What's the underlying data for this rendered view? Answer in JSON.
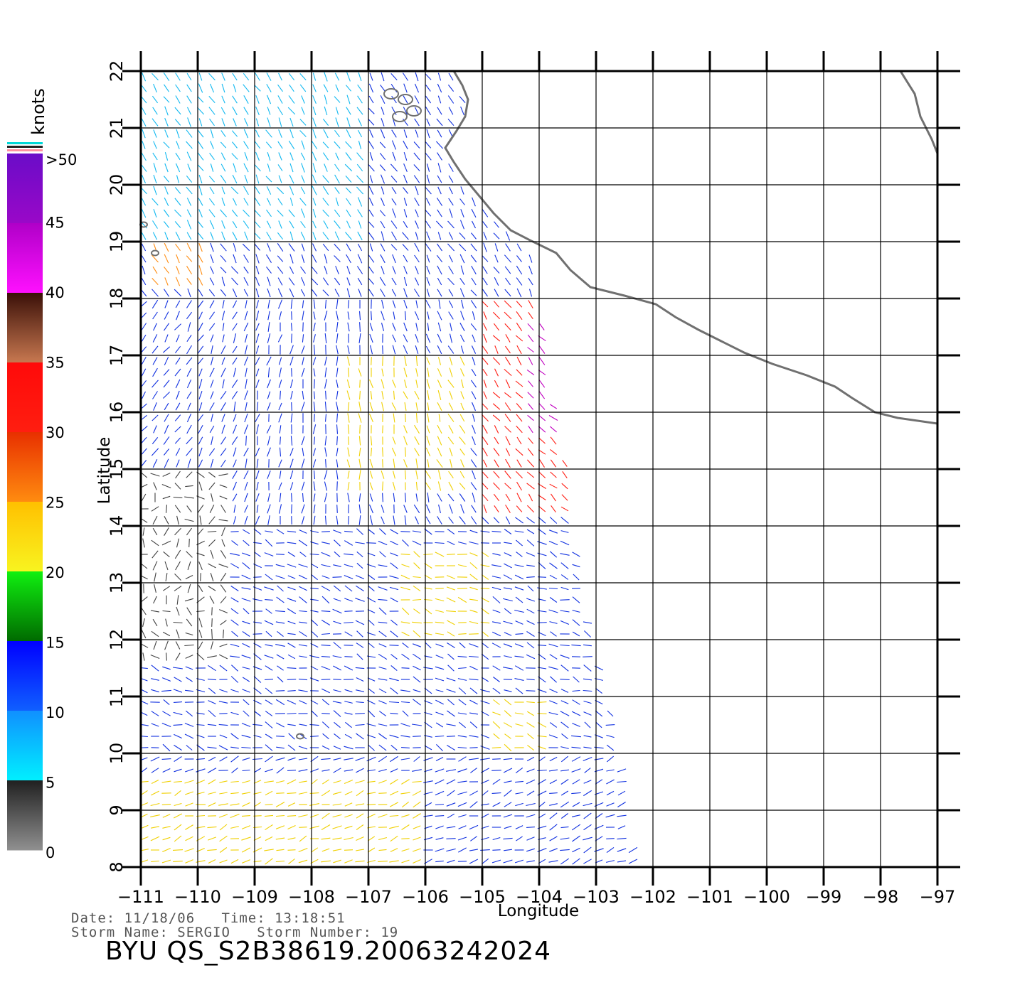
{
  "legend": {
    "unit": "knots",
    "labels": [
      ">50",
      "45",
      "40",
      "35",
      "30",
      "25",
      "20",
      "15",
      "10",
      "5",
      "0"
    ],
    "colors": {
      "gt50_top": "#6a0cc8",
      "gt50_bottom": "#9a08c8",
      "c40_45_top": "#b000c8",
      "c40_45_bottom": "#ff10ff",
      "c35_40_top": "#3a1008",
      "c35_40_bottom": "#c87850",
      "c30_35_top": "#ff0a0a",
      "c30_35_bottom": "#ff1e10",
      "c25_30_top": "#e83000",
      "c25_30_bottom": "#ff8c10",
      "c20_25_top": "#ffc000",
      "c20_25_bottom": "#f8f420",
      "c15_20_top": "#10f010",
      "c15_20_bottom": "#006a00",
      "c10_15_top": "#0000ff",
      "c10_15_bottom": "#1060ff",
      "c5_10_top": "#1090ff",
      "c5_10_bottom": "#00f0ff",
      "c0_5_top": "#202020",
      "c0_5_bottom": "#909090"
    }
  },
  "axes": {
    "xlabel": "Longitude",
    "ylabel": "Latitude",
    "lon_ticks": [
      "−111",
      "−110",
      "−109",
      "−108",
      "−107",
      "−106",
      "−105",
      "−104",
      "−103",
      "−102",
      "−101",
      "−100",
      "−99",
      "−98",
      "−97"
    ],
    "lat_ticks": [
      "22",
      "21",
      "20",
      "19",
      "18",
      "17",
      "16",
      "15",
      "14",
      "13",
      "12",
      "11",
      "10",
      "9",
      "8"
    ],
    "lon_range": [
      -111,
      -97
    ],
    "lat_range": [
      8,
      22
    ]
  },
  "info": {
    "date_line": "Date: 11/18/06   Time: 13:18:51",
    "storm_line": "Storm Name: SERGIO   Storm Number: 19",
    "title": "BYU QS_S2B38619.20063242024"
  },
  "coastline": [
    [
      -105.5,
      22.0
    ],
    [
      -105.35,
      21.75
    ],
    [
      -105.25,
      21.5
    ],
    [
      -105.3,
      21.2
    ],
    [
      -105.45,
      20.95
    ],
    [
      -105.65,
      20.65
    ],
    [
      -105.5,
      20.4
    ],
    [
      -105.3,
      20.1
    ],
    [
      -105.05,
      19.8
    ],
    [
      -104.8,
      19.5
    ],
    [
      -104.5,
      19.2
    ],
    [
      -104.15,
      19.02
    ],
    [
      -103.7,
      18.8
    ],
    [
      -103.45,
      18.5
    ],
    [
      -103.1,
      18.2
    ],
    [
      -102.5,
      18.05
    ],
    [
      -101.95,
      17.9
    ],
    [
      -101.6,
      17.67
    ],
    [
      -101.2,
      17.45
    ],
    [
      -100.8,
      17.25
    ],
    [
      -100.4,
      17.05
    ],
    [
      -99.9,
      16.85
    ],
    [
      -99.3,
      16.65
    ],
    [
      -98.8,
      16.45
    ],
    [
      -98.5,
      16.25
    ],
    [
      -98.1,
      16.0
    ],
    [
      -97.7,
      15.9
    ],
    [
      -97.0,
      15.8
    ]
  ],
  "coast_ne": [
    [
      -97.65,
      22.0
    ],
    [
      -97.4,
      21.6
    ],
    [
      -97.3,
      21.2
    ],
    [
      -97.1,
      20.8
    ],
    [
      -97.0,
      20.55
    ]
  ],
  "islands": [
    [
      -106.6,
      21.6
    ],
    [
      -106.35,
      21.5
    ],
    [
      -106.2,
      21.3
    ],
    [
      -106.45,
      21.2
    ],
    [
      -110.95,
      19.3
    ],
    [
      -110.75,
      18.8
    ],
    [
      -108.2,
      10.3
    ]
  ],
  "wind_field": {
    "swath_east_edge": [
      [
        -102.3,
        8.0
      ],
      [
        -102.5,
        9.5
      ],
      [
        -102.8,
        11.0
      ],
      [
        -103.2,
        12.5
      ],
      [
        -103.4,
        14.0
      ],
      [
        -103.5,
        15.0
      ],
      [
        -103.8,
        16.5
      ],
      [
        -104.0,
        18.0
      ],
      [
        -104.2,
        19.0
      ],
      [
        -105.2,
        20.0
      ]
    ],
    "zones": [
      {
        "lon": [
          -105.0,
          -103.4
        ],
        "lat": [
          14.2,
          18.0
        ],
        "speed": 30
      },
      {
        "lon": [
          -104.2,
          -103.4
        ],
        "lat": [
          15.5,
          17.5
        ],
        "speed": 42
      },
      {
        "lon": [
          -107.5,
          -105.3
        ],
        "lat": [
          14.5,
          17.0
        ],
        "speed": 22
      },
      {
        "lon": [
          -106.5,
          -104.8
        ],
        "lat": [
          12.0,
          13.5
        ],
        "speed": 22
      },
      {
        "lon": [
          -104.8,
          -103.9
        ],
        "lat": [
          10.0,
          11.0
        ],
        "speed": 22
      },
      {
        "lon": [
          -111.0,
          -106.0
        ],
        "lat": [
          8.0,
          9.5
        ],
        "speed": 20
      },
      {
        "lon": [
          -110.9,
          -109.8
        ],
        "lat": [
          18.2,
          18.9
        ],
        "speed": 28
      },
      {
        "lon": [
          -111.0,
          -109.5
        ],
        "lat": [
          11.5,
          15.0
        ],
        "speed": 4
      },
      {
        "lon": [
          -111.0,
          -107.0
        ],
        "lat": [
          19.0,
          22.0
        ],
        "speed": 8
      }
    ]
  }
}
